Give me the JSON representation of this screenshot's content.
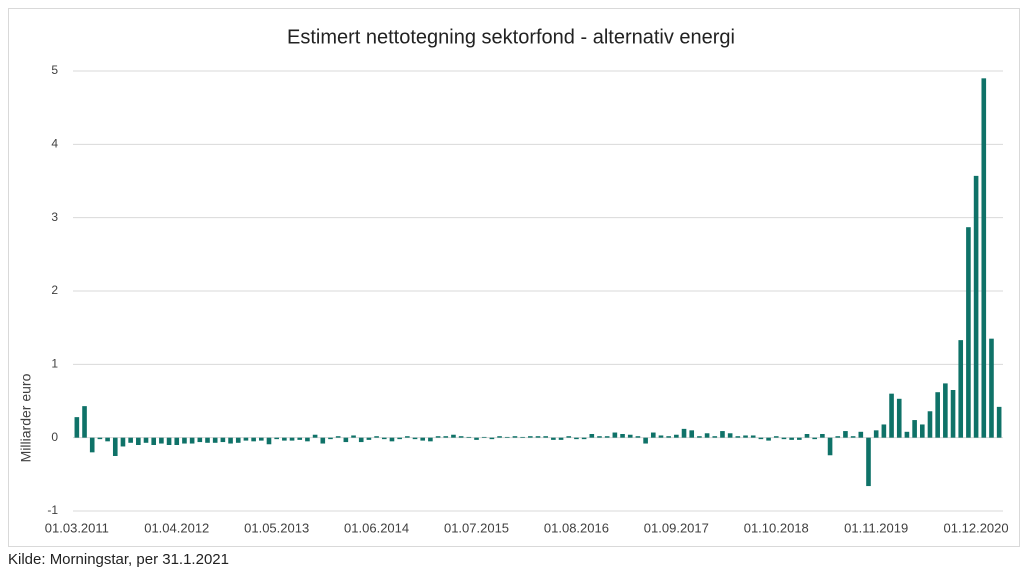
{
  "chart_data": {
    "type": "bar",
    "title": "Estimert nettotegning sektorfond - alternativ energi",
    "y_label": "Milliarder euro",
    "source": "Kilde: Morningstar, per 31.1.2021",
    "color": "#0f7268",
    "grid": true,
    "ylim": [
      -1,
      5
    ],
    "yticks": [
      -1,
      0,
      1,
      2,
      3,
      4,
      5
    ],
    "categories": [
      "01.03.2011",
      null,
      null,
      null,
      null,
      null,
      null,
      null,
      null,
      null,
      null,
      null,
      null,
      "01.04.2012",
      null,
      null,
      null,
      null,
      null,
      null,
      null,
      null,
      null,
      null,
      null,
      null,
      "01.05.2013",
      null,
      null,
      null,
      null,
      null,
      null,
      null,
      null,
      null,
      null,
      null,
      null,
      "01.06.2014",
      null,
      null,
      null,
      null,
      null,
      null,
      null,
      null,
      null,
      null,
      null,
      null,
      "01.07.2015",
      null,
      null,
      null,
      null,
      null,
      null,
      null,
      null,
      null,
      null,
      null,
      null,
      "01.08.2016",
      null,
      null,
      null,
      null,
      null,
      null,
      null,
      null,
      null,
      null,
      null,
      null,
      "01.09.2017",
      null,
      null,
      null,
      null,
      null,
      null,
      null,
      null,
      null,
      null,
      null,
      null,
      "01.10.2018",
      null,
      null,
      null,
      null,
      null,
      null,
      null,
      null,
      null,
      null,
      null,
      null,
      "01.11.2019",
      null,
      null,
      null,
      null,
      null,
      null,
      null,
      null,
      null,
      null,
      null,
      null,
      "01.12.2020",
      null,
      null,
      null
    ],
    "values": [
      0.28,
      0.43,
      -0.2,
      -0.02,
      -0.05,
      -0.25,
      -0.12,
      -0.07,
      -0.1,
      -0.07,
      -0.1,
      -0.08,
      -0.1,
      -0.1,
      -0.08,
      -0.08,
      -0.06,
      -0.07,
      -0.07,
      -0.06,
      -0.08,
      -0.07,
      -0.04,
      -0.05,
      -0.04,
      -0.09,
      -0.02,
      -0.04,
      -0.04,
      -0.03,
      -0.05,
      0.04,
      -0.08,
      -0.02,
      0.02,
      -0.06,
      0.03,
      -0.06,
      -0.03,
      0.02,
      -0.02,
      -0.05,
      -0.02,
      0.02,
      -0.02,
      -0.04,
      -0.05,
      0.02,
      0.02,
      0.04,
      0.02,
      0.01,
      -0.03,
      0.01,
      -0.02,
      0.02,
      0.01,
      0.02,
      0.01,
      0.02,
      0.02,
      0.02,
      -0.03,
      -0.03,
      0.02,
      -0.02,
      -0.02,
      0.05,
      0.02,
      0.02,
      0.07,
      0.05,
      0.04,
      0.02,
      -0.08,
      0.07,
      0.03,
      0.02,
      0.04,
      0.12,
      0.1,
      0.02,
      0.06,
      0.02,
      0.09,
      0.06,
      0.02,
      0.03,
      0.03,
      -0.02,
      -0.04,
      0.02,
      -0.02,
      -0.03,
      -0.03,
      0.05,
      -0.02,
      0.05,
      -0.24,
      0.02,
      0.09,
      0.02,
      0.08,
      -0.66,
      0.1,
      0.18,
      0.6,
      0.53,
      0.08,
      0.24,
      0.18,
      0.36,
      0.62,
      0.74,
      0.65,
      1.33,
      2.87,
      3.57,
      4.9,
      1.35,
      0.42
    ]
  }
}
